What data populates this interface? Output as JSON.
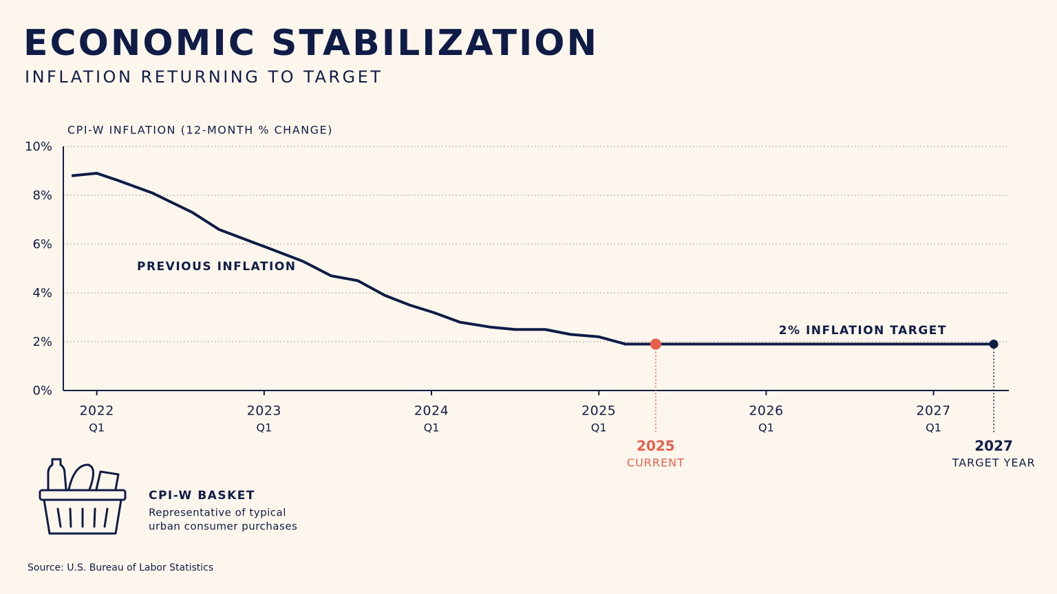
{
  "chart_data": {
    "type": "line",
    "title": "ECONOMIC STABILIZATION",
    "subtitle": "INFLATION RETURNING TO TARGET",
    "y_label": "CPI-W INFLATION (12-MONTH % CHANGE)",
    "series": [
      {
        "name": "PREVIOUS INFLATION",
        "color": "#0f1c47",
        "x": [
          2021.85,
          2022.0,
          2022.13,
          2022.33,
          2022.57,
          2022.73,
          2023.0,
          2023.23,
          2023.4,
          2023.56,
          2023.72,
          2023.87,
          2024.01,
          2024.17,
          2024.35,
          2024.5,
          2024.68,
          2024.83,
          2025.0,
          2025.16,
          2025.34,
          2027.36
        ],
        "values": [
          8.8,
          8.9,
          8.6,
          8.1,
          7.3,
          6.6,
          5.9,
          5.3,
          4.7,
          4.5,
          3.9,
          3.5,
          3.2,
          2.8,
          2.6,
          2.5,
          2.5,
          2.3,
          2.2,
          1.9,
          1.9,
          1.9
        ]
      }
    ],
    "annotation": "2% INFLATION TARGET",
    "markers": [
      {
        "x": 2025.34,
        "value": 1.9,
        "label": "2025",
        "note": "CURRENT",
        "color": "#e8604c"
      },
      {
        "x": 2027.36,
        "value": 1.9,
        "label": "2027",
        "note": "TARGET YEAR",
        "color": "#0f1c47"
      }
    ],
    "xlim": [
      2021.8,
      2027.45
    ],
    "ylim": [
      0,
      10
    ],
    "xticks": [
      {
        "value": 2022,
        "label": "2022"
      },
      {
        "value": 2023,
        "label": "2023"
      },
      {
        "value": 2024,
        "label": "2024"
      },
      {
        "value": 2025,
        "label": "2025"
      },
      {
        "value": 2026,
        "label": "2026"
      },
      {
        "value": 2027,
        "label": "2027"
      }
    ],
    "xtick_quarters": [
      "Q1",
      "Q1",
      "Q1",
      "Q1",
      "Q1",
      "Q1"
    ],
    "yticks": [
      {
        "value": 0,
        "label": "0%"
      },
      {
        "value": 2,
        "label": "2%"
      },
      {
        "value": 4,
        "label": "4%"
      },
      {
        "value": 6,
        "label": "6%"
      },
      {
        "value": 8,
        "label": "8%"
      },
      {
        "value": 10,
        "label": "10%"
      }
    ],
    "grid": true,
    "basket_title": "CPI-W BASKET",
    "basket_text": [
      "Representative of typical",
      "urban consumer purchases"
    ],
    "source": "Source: U.S. Bureau of Labor Statistics"
  }
}
